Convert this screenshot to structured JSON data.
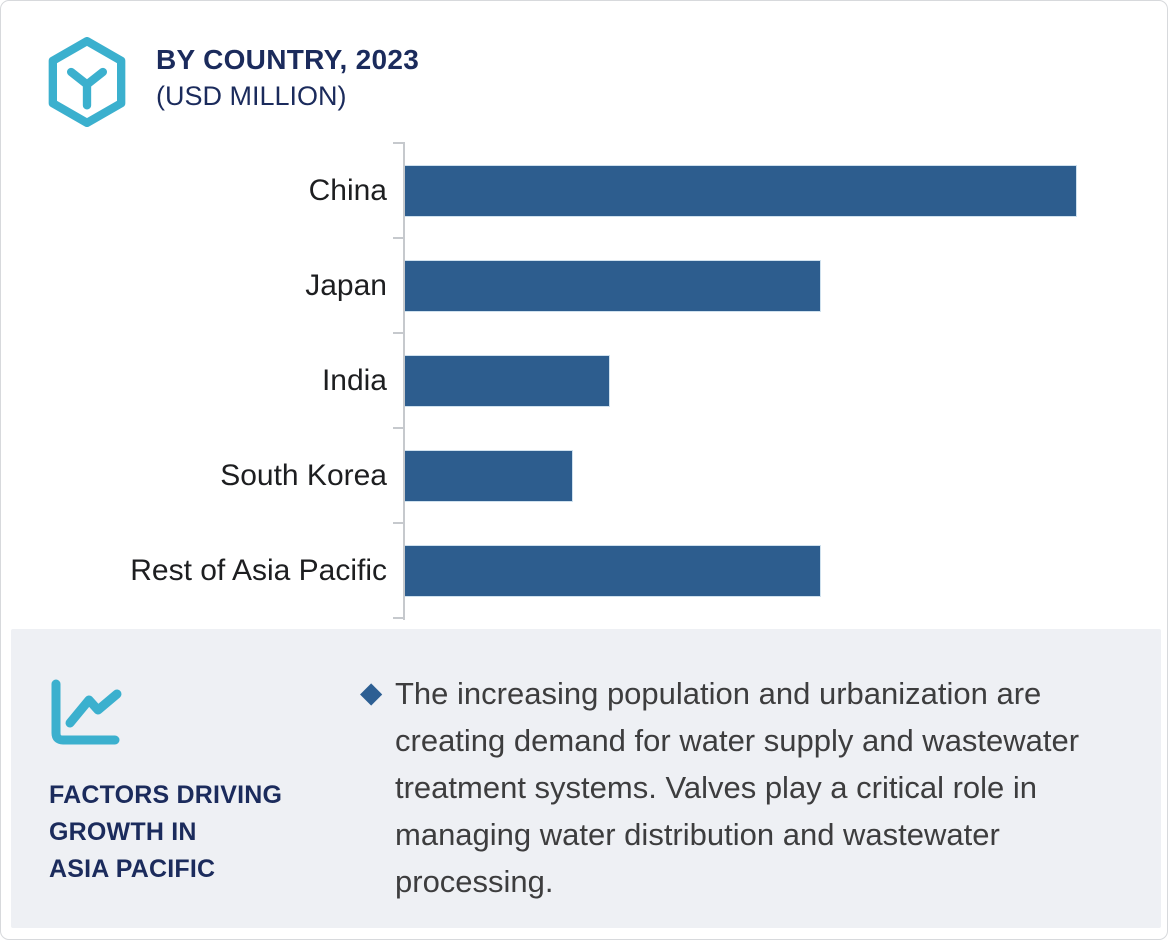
{
  "header": {
    "title": "BY COUNTRY, 2023",
    "subtitle": "(USD MILLION)"
  },
  "chart_data": {
    "type": "bar",
    "orientation": "horizontal",
    "title": "BY COUNTRY, 2023 (USD MILLION)",
    "categories": [
      "China",
      "Japan",
      "India",
      "South Korea",
      "Rest of Asia Pacific"
    ],
    "values": [
      100,
      62,
      30.5,
      25,
      62
    ],
    "value_note": "No numeric axis labels shown; values are relative bar lengths estimated from pixels with China = 100.",
    "xlabel": "",
    "ylabel": "",
    "grid": false,
    "legend": false,
    "bar_color": "#2d5d8e",
    "axis_color": "#c6c9cd",
    "max_bar_track_pct": 92.4
  },
  "panel": {
    "heading_lines": [
      "FACTORS DRIVING",
      "GROWTH IN",
      "ASIA PACIFIC"
    ],
    "bullet_marker": "◆",
    "bullet_text": "The increasing population and urbanization are creating demand for water supply and wastewater treatment systems. Valves play a critical role in managing water distribution and wastewater processing."
  },
  "colors": {
    "navy": "#1b2b5c",
    "teal": "#3bb0ce",
    "bar_blue": "#2d5d8e",
    "diamond_blue": "#2d5f93",
    "panel_bg": "#eef0f4",
    "body_text": "#3d3d3e"
  }
}
